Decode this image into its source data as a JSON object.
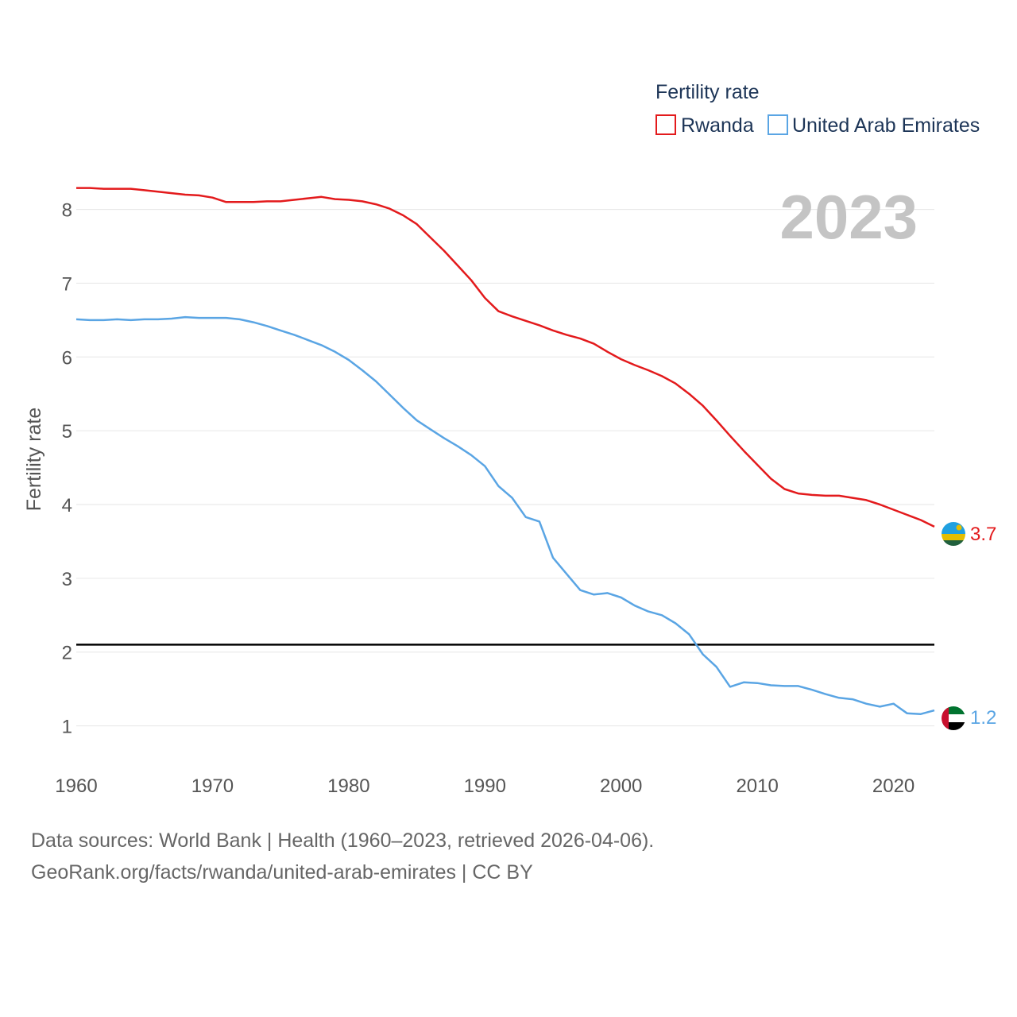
{
  "chart_data": {
    "type": "line",
    "legend_title": "Fertility rate",
    "ylabel": "Fertility rate",
    "year_label": "2023",
    "ylim": [
      0.5,
      8.9
    ],
    "xlim": [
      1960,
      2023
    ],
    "y_ticks": [
      1,
      2,
      3,
      4,
      5,
      6,
      7,
      8
    ],
    "x_ticks": [
      1960,
      1970,
      1980,
      1990,
      2000,
      2010,
      2020
    ],
    "reference_line": 2.1,
    "legend_position": "top-right",
    "series": [
      {
        "name": "Rwanda",
        "color": "#e31a1c",
        "end_label": "3.7",
        "flag": "rwanda-flag-icon",
        "x": [
          1960,
          1961,
          1962,
          1963,
          1964,
          1965,
          1966,
          1967,
          1968,
          1969,
          1970,
          1971,
          1972,
          1973,
          1974,
          1975,
          1976,
          1977,
          1978,
          1979,
          1980,
          1981,
          1982,
          1983,
          1984,
          1985,
          1986,
          1987,
          1988,
          1989,
          1990,
          1991,
          1992,
          1993,
          1994,
          1995,
          1996,
          1997,
          1998,
          1999,
          2000,
          2001,
          2002,
          2003,
          2004,
          2005,
          2006,
          2007,
          2008,
          2009,
          2010,
          2011,
          2012,
          2013,
          2014,
          2015,
          2016,
          2017,
          2018,
          2019,
          2020,
          2021,
          2022,
          2023
        ],
        "y": [
          8.29,
          8.29,
          8.28,
          8.28,
          8.28,
          8.26,
          8.24,
          8.22,
          8.2,
          8.19,
          8.16,
          8.1,
          8.1,
          8.1,
          8.11,
          8.11,
          8.13,
          8.15,
          8.17,
          8.14,
          8.13,
          8.11,
          8.07,
          8.01,
          7.92,
          7.8,
          7.62,
          7.44,
          7.24,
          7.04,
          6.8,
          6.62,
          6.55,
          6.49,
          6.43,
          6.36,
          6.3,
          6.25,
          6.18,
          6.07,
          5.97,
          5.89,
          5.82,
          5.74,
          5.64,
          5.5,
          5.34,
          5.14,
          4.93,
          4.73,
          4.54,
          4.35,
          4.21,
          4.15,
          4.13,
          4.12,
          4.12,
          4.09,
          4.06,
          4.0,
          3.93,
          3.86,
          3.79,
          3.7
        ]
      },
      {
        "name": "United Arab Emirates",
        "color": "#5aa5e4",
        "end_label": "1.2",
        "flag": "uae-flag-icon",
        "x": [
          1960,
          1961,
          1962,
          1963,
          1964,
          1965,
          1966,
          1967,
          1968,
          1969,
          1970,
          1971,
          1972,
          1973,
          1974,
          1975,
          1976,
          1977,
          1978,
          1979,
          1980,
          1981,
          1982,
          1983,
          1984,
          1985,
          1986,
          1987,
          1988,
          1989,
          1990,
          1991,
          1992,
          1993,
          1994,
          1995,
          1996,
          1997,
          1998,
          1999,
          2000,
          2001,
          2002,
          2003,
          2004,
          2005,
          2006,
          2007,
          2008,
          2009,
          2010,
          2011,
          2012,
          2013,
          2014,
          2015,
          2016,
          2017,
          2018,
          2019,
          2020,
          2021,
          2022,
          2023
        ],
        "y": [
          6.51,
          6.5,
          6.5,
          6.51,
          6.5,
          6.51,
          6.51,
          6.52,
          6.54,
          6.53,
          6.53,
          6.53,
          6.51,
          6.47,
          6.42,
          6.36,
          6.3,
          6.23,
          6.16,
          6.07,
          5.96,
          5.82,
          5.67,
          5.49,
          5.31,
          5.14,
          5.02,
          4.9,
          4.79,
          4.67,
          4.52,
          4.25,
          4.09,
          3.83,
          3.77,
          3.28,
          3.06,
          2.84,
          2.78,
          2.8,
          2.74,
          2.63,
          2.55,
          2.5,
          2.39,
          2.24,
          1.97,
          1.8,
          1.53,
          1.59,
          1.58,
          1.55,
          1.54,
          1.54,
          1.49,
          1.43,
          1.38,
          1.36,
          1.3,
          1.26,
          1.3,
          1.17,
          1.16,
          1.21
        ]
      }
    ]
  },
  "footer": {
    "sources": "Data sources: World Bank | Health (1960–2023, retrieved 2026-04-06).",
    "credit": "GeoRank.org/facts/rwanda/united-arab-emirates | CC BY"
  }
}
